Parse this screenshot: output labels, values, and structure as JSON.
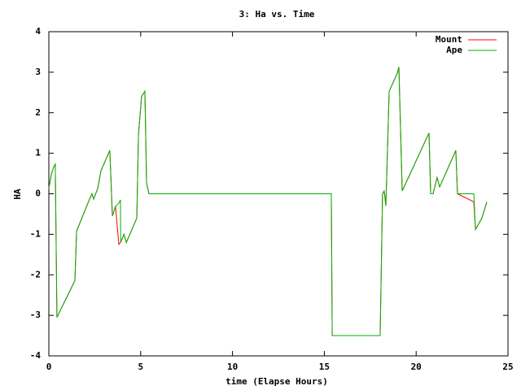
{
  "chart_data": {
    "type": "line",
    "title": "3: Ha vs. Time",
    "x_label": "time (Elapse Hours)",
    "y_label": "HA",
    "x": [
      0,
      0.13,
      0.27,
      0.35,
      0.44,
      1.42,
      1.51,
      2.22,
      2.35,
      2.44,
      2.66,
      2.84,
      3.32,
      3.46,
      3.63,
      3.81,
      3.9,
      3.91,
      4.09,
      4.22,
      4.79,
      4.88,
      5.05,
      5.23,
      5.32,
      5.45,
      15.38,
      15.43,
      18.04,
      18.17,
      18.26,
      18.35,
      18.53,
      18.97,
      19.06,
      19.24,
      20.7,
      20.79,
      20.92,
      21.14,
      21.28,
      22.16,
      22.25,
      23.14,
      23.23,
      23.58,
      23.85
    ],
    "series": [
      {
        "name": "Mount",
        "color": "#ff0000",
        "values": [
          0.13,
          0.47,
          0.67,
          0.73,
          -3.05,
          -2.14,
          -0.92,
          -0.13,
          0,
          -0.13,
          0.13,
          0.57,
          1.07,
          -0.55,
          -0.31,
          -1.25,
          -1.2,
          -1.2,
          -1.0,
          -1.2,
          -0.6,
          1.47,
          2.4,
          2.53,
          0.27,
          0,
          0,
          -3.5,
          -3.5,
          0,
          0.07,
          -0.3,
          2.53,
          2.97,
          3.13,
          0.07,
          1.5,
          0,
          0,
          0.4,
          0.17,
          1.07,
          0,
          -0.2,
          -0.88,
          -0.6,
          -0.2
        ]
      },
      {
        "name": "Ape",
        "color": "#00b000",
        "values": [
          0.13,
          0.47,
          0.67,
          0.73,
          -3.05,
          -2.14,
          -0.92,
          -0.13,
          0,
          -0.13,
          0.13,
          0.57,
          1.07,
          -0.55,
          -0.31,
          -0.23,
          -0.15,
          -1.2,
          -1.0,
          -1.2,
          -0.6,
          1.47,
          2.4,
          2.53,
          0.27,
          0,
          0,
          -3.5,
          -3.5,
          0,
          0.07,
          -0.3,
          2.53,
          2.97,
          3.13,
          0.07,
          1.5,
          0,
          0,
          0.4,
          0.17,
          1.07,
          0,
          0,
          -0.88,
          -0.6,
          -0.2
        ]
      }
    ],
    "xlim": [
      0,
      25
    ],
    "xticks": [
      0,
      5,
      10,
      15,
      20,
      25
    ],
    "ylim": [
      -4,
      4
    ],
    "yticks": [
      -4,
      -3,
      -2,
      -1,
      0,
      1,
      2,
      3,
      4
    ],
    "legend": "top-right"
  }
}
